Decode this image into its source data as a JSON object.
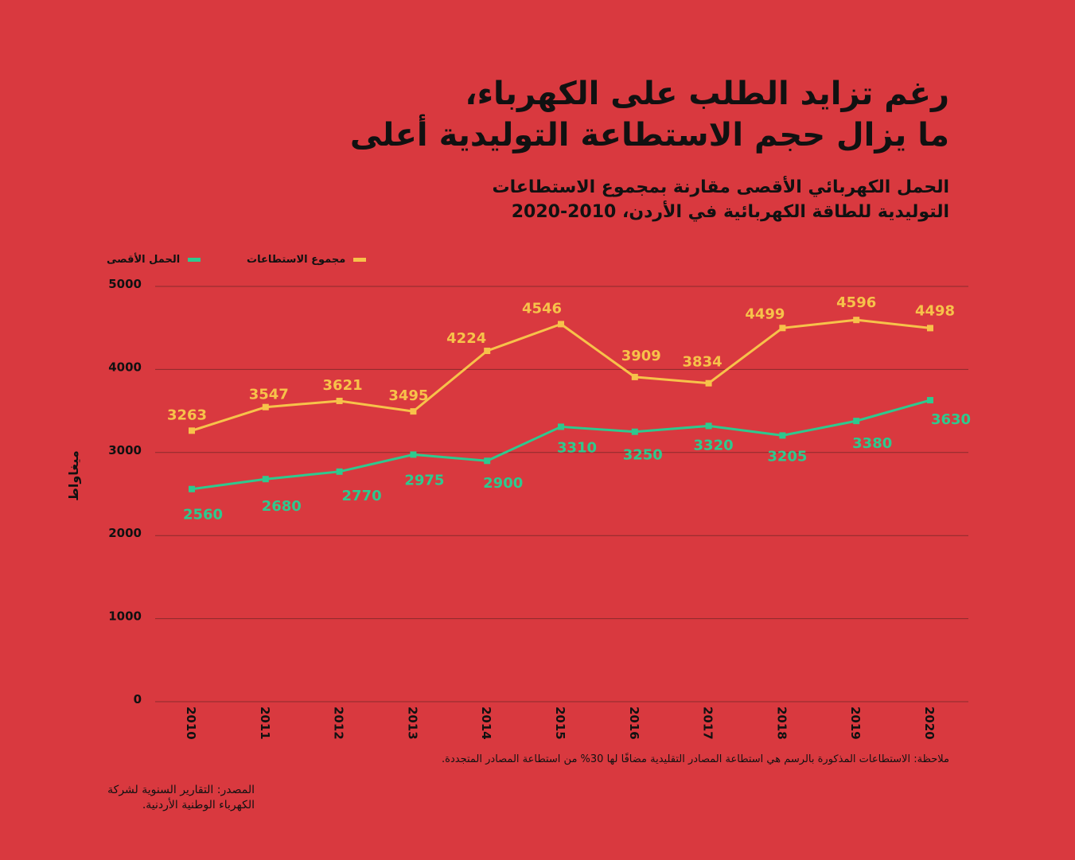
{
  "title_line1": "رغم تزايد الطلب على الكهرباء،",
  "title_line2": "ما يزال حجم الاستطاعة التوليدية أعلى",
  "subtitle_line1": "الحمل الكهربائي الأقصى مقارنة بمجموع الاستطاعات",
  "subtitle_line2": "التوليدية للطاقة الكهربائية في الأردن، 2010-2020",
  "note": "ملاحظة: الاستطاعات المذكورة بالرسم هي استطاعة المصادر التقليدية مضافًا لها 30% من استطاعة المصادر المتجددة.",
  "source_line1": "المصدر: التقارير السنوية لشركة",
  "source_line2": "الكهرباء الوطنية الأردنية.",
  "colors": {
    "background": "#d9393f",
    "capacity": "#f7c24a",
    "peak": "#2ec98e",
    "grid": "#8a2a2c",
    "text": "#111111"
  },
  "chart_data": {
    "type": "line",
    "x": [
      "2010",
      "2011",
      "2012",
      "2013",
      "2014",
      "2015",
      "2016",
      "2017",
      "2018",
      "2019",
      "2020"
    ],
    "series": [
      {
        "name": "مجموع الاستطاعات",
        "values": [
          3263,
          3547,
          3621,
          3495,
          4224,
          4546,
          3909,
          3834,
          4499,
          4596,
          4498
        ]
      },
      {
        "name": "الحمل الأقصى",
        "values": [
          2560,
          2680,
          2770,
          2975,
          2900,
          3310,
          3250,
          3320,
          3205,
          3380,
          3630
        ]
      }
    ],
    "ylabel": "ميغاواط",
    "xlabel": "",
    "ylim": [
      0,
      5000
    ],
    "yticks": [
      0,
      1000,
      2000,
      3000,
      4000,
      5000
    ],
    "grid": true,
    "legend_position": "top-left"
  }
}
